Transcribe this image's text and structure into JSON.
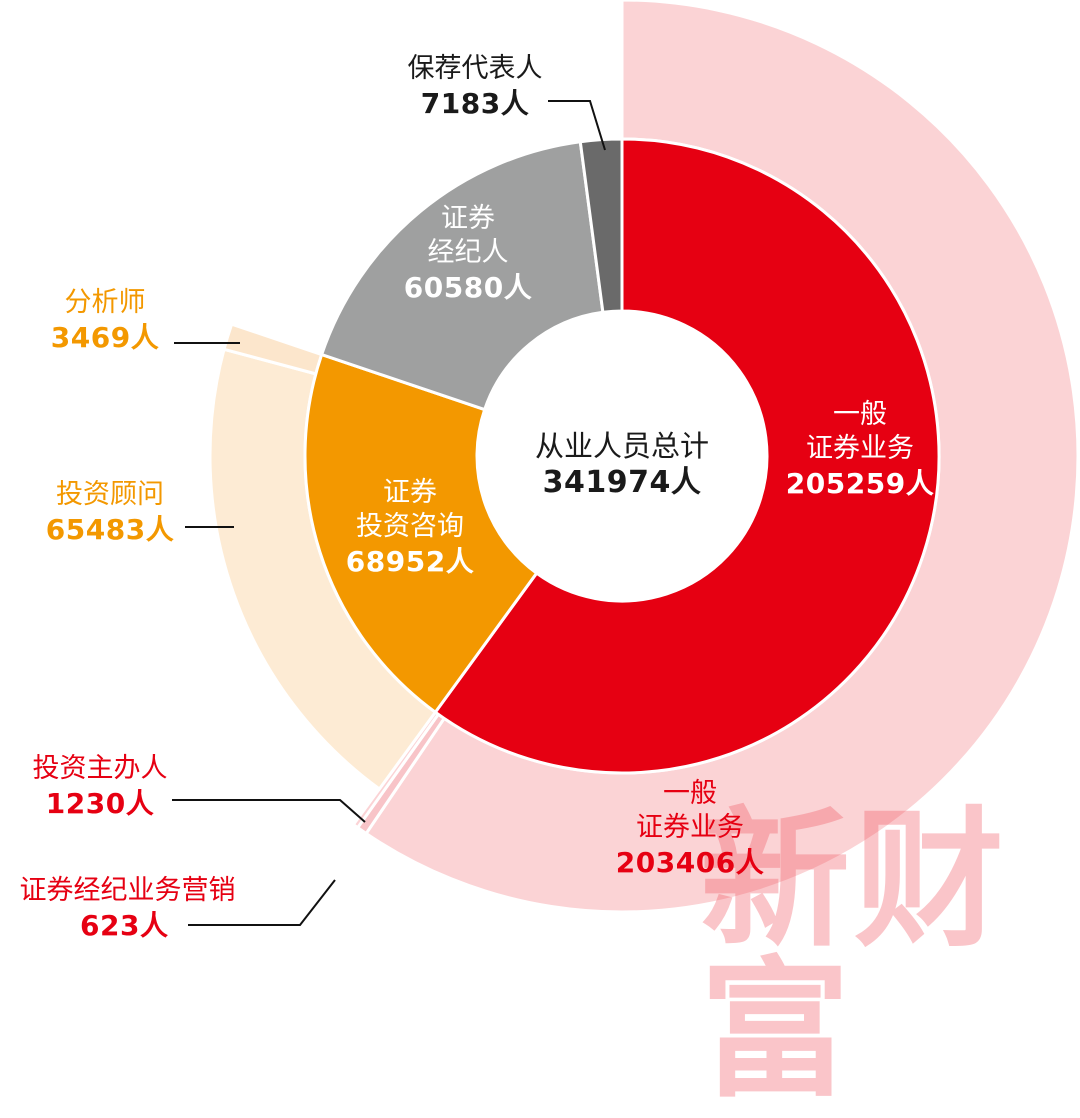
{
  "chart_data": {
    "type": "pie",
    "subtype": "nested-donut",
    "title": "",
    "center_label": {
      "name": "从业人员总计",
      "value": "341974人",
      "total": 341974
    },
    "unit": "人",
    "inner_ring": [
      {
        "name": "一般证券业务",
        "lines": [
          "一般",
          "证券业务"
        ],
        "value": 205259,
        "display": "205259人",
        "color": "#E60012"
      },
      {
        "name": "证券投资咨询",
        "lines": [
          "证券",
          "投资咨询"
        ],
        "value": 68952,
        "display": "68952人",
        "color": "#F39800"
      },
      {
        "name": "证券经纪人",
        "lines": [
          "证券",
          "经纪人"
        ],
        "value": 60580,
        "display": "60580人",
        "color": "#9FA0A0"
      },
      {
        "name": "保荐代表人",
        "lines": [
          "保荐代表人"
        ],
        "value": 7183,
        "display": "7183人",
        "color": "#6A6A6A"
      }
    ],
    "outer_ring": [
      {
        "name": "一般证券业务",
        "lines": [
          "一般",
          "证券业务"
        ],
        "value": 203406,
        "display": "203406人",
        "color": "#FBD3D5",
        "parent": "一般证券业务"
      },
      {
        "name": "投资主办人",
        "value": 1230,
        "display": "1230人",
        "color": "#F8C4C8",
        "parent": "一般证券业务"
      },
      {
        "name": "证券经纪业务营销",
        "value": 623,
        "display": "623人",
        "color": "#FBD3D5",
        "parent": "一般证券业务"
      },
      {
        "name": "投资顾问",
        "value": 65483,
        "display": "65483人",
        "color": "#FDEBD4",
        "parent": "证券投资咨询"
      },
      {
        "name": "分析师",
        "value": 3469,
        "display": "3469人",
        "color": "#FCE6CC",
        "parent": "证券投资咨询"
      }
    ],
    "legend": "none",
    "grid": false
  },
  "labels": {
    "center_name": "从业人员总计",
    "center_value": "341974人",
    "general_inner_l1": "一般",
    "general_inner_l2": "证券业务",
    "general_inner_val": "205259人",
    "consult_l1": "证券",
    "consult_l2": "投资咨询",
    "consult_val": "68952人",
    "broker_l1": "证券",
    "broker_l2": "经纪人",
    "broker_val": "60580人",
    "sponsor_name": "保荐代表人",
    "sponsor_val": "7183人",
    "analyst_name": "分析师",
    "analyst_val": "3469人",
    "advisor_name": "投资顾问",
    "advisor_val": "65483人",
    "manager_name": "投资主办人",
    "manager_val": "1230人",
    "marketing_name": "证券经纪业务营销",
    "marketing_val": "623人",
    "general_outer_l1": "一般",
    "general_outer_l2": "证券业务",
    "general_outer_val": "203406人"
  },
  "watermark": "新财富",
  "colors": {
    "red": "#E60012",
    "orange": "#F39800",
    "gray": "#9FA0A0",
    "dark_gray": "#6A6A6A",
    "pink": "#FBD3D5",
    "light_orange": "#FDEBD4",
    "text_dark": "#1A1A1A"
  }
}
